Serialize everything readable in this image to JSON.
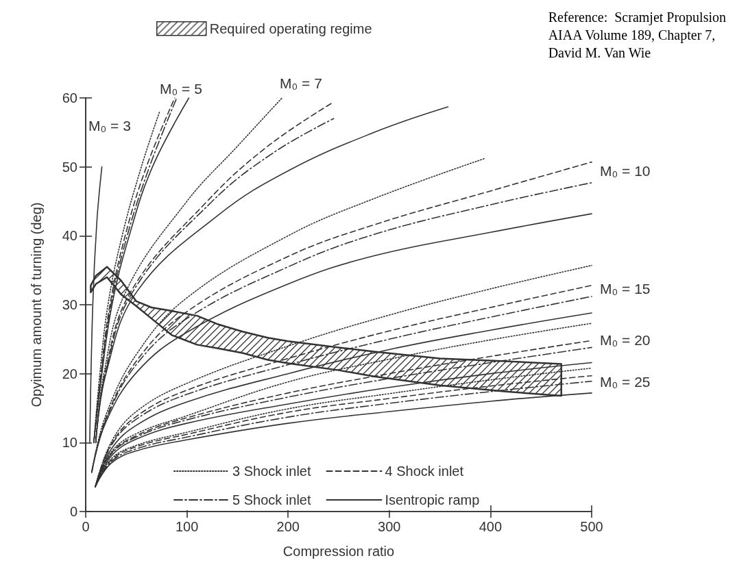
{
  "chart_data": {
    "type": "line",
    "xlabel": "Compression ratio",
    "ylabel": "Opyimum amount of turning (deg)",
    "xlim": [
      0,
      500
    ],
    "xticks": [
      0,
      100,
      200,
      300,
      400,
      500
    ],
    "ylim": [
      0,
      60
    ],
    "yticks": [
      0,
      10,
      20,
      30,
      40,
      50,
      60
    ],
    "grid": false,
    "legend": "top left",
    "marker": "none",
    "annotations": [
      "Reference:  Scramjet Propulsion\nAIAA Volume 189, Chapter 7,\nDavid M. Van Wie",
      "M₀ = 3",
      "M₀ = 5",
      "M₀ = 7",
      "M₀ = 10",
      "M₀ = 15",
      "M₀ = 20",
      "M₀ = 25"
    ],
    "series": [
      {
        "type": "area",
        "name": "Required operating regime",
        "color": "#333333",
        "x": [
          5,
          10,
          21,
          35,
          50,
          65,
          85,
          110,
          130,
          155,
          180,
          200,
          250,
          285,
          350,
          415,
          470
        ],
        "upper": [
          32.8,
          34.2,
          35.5,
          33.5,
          30.5,
          29.6,
          29.1,
          28.4,
          27.2,
          26.1,
          25.2,
          24.7,
          23.8,
          23.2,
          22.2,
          21.8,
          21.4
        ],
        "lower": [
          31.8,
          33.0,
          34.0,
          31.5,
          29.8,
          28.0,
          25.6,
          24.2,
          23.7,
          23.0,
          22.0,
          21.5,
          20.5,
          19.6,
          18.3,
          17.4,
          16.8
        ],
        "values": [
          null,
          null,
          null,
          null,
          null,
          null,
          null,
          null,
          null,
          null,
          null,
          null,
          null,
          null,
          null,
          null,
          null
        ]
      },
      {
        "color": "#333333",
        "line_style": "solid",
        "x": [
          4,
          7,
          11,
          16
        ],
        "values": [
          10,
          30,
          42,
          50
        ]
      },
      {
        "name": "3 Shock inlet",
        "color": "#333333",
        "line_style": "dotted",
        "x": [
          8,
          14,
          22,
          36,
          55,
          73
        ],
        "values": [
          10,
          20,
          30,
          40,
          50,
          58
        ]
      },
      {
        "name": "4 Shock inlet",
        "color": "#333333",
        "line_style": "dashed",
        "x": [
          8,
          15,
          24,
          39,
          60,
          88
        ],
        "values": [
          10,
          20,
          30,
          40,
          50,
          60
        ]
      },
      {
        "name": "5 Shock inlet",
        "color": "#333333",
        "line_style": "dashdot",
        "x": [
          8,
          15.5,
          25,
          41,
          63,
          90
        ],
        "values": [
          10,
          20,
          30,
          40,
          50,
          60
        ]
      },
      {
        "name": "Isentropic ramp",
        "color": "#333333",
        "line_style": "solid",
        "x": [
          8,
          16,
          26,
          43,
          66,
          102
        ],
        "values": [
          10,
          20,
          30,
          40,
          50,
          60
        ]
      },
      {
        "color": "#333333",
        "line_style": "dotted",
        "x": [
          10,
          18,
          40,
          100,
          150,
          194
        ],
        "values": [
          10,
          20,
          32,
          45,
          53,
          60
        ]
      },
      {
        "color": "#333333",
        "line_style": "dashed",
        "x": [
          10,
          19,
          45,
          120,
          180,
          245
        ],
        "values": [
          10,
          20,
          32,
          45,
          53,
          59.4
        ]
      },
      {
        "color": "#333333",
        "line_style": "dashdot",
        "x": [
          10,
          19.5,
          47,
          125,
          185,
          245
        ],
        "values": [
          10,
          20,
          32,
          45,
          52,
          57
        ]
      },
      {
        "color": "#333333",
        "line_style": "solid",
        "x": [
          10,
          20,
          51,
          131,
          201,
          285,
          358
        ],
        "values": [
          10,
          20,
          32,
          43,
          49.5,
          55,
          58.7
        ]
      },
      {
        "color": "#333333",
        "line_style": "dotted",
        "x": [
          6,
          20,
          51,
          100,
          200,
          285,
          394
        ],
        "values": [
          5.7,
          14,
          23,
          31,
          40,
          45.4,
          51.2
        ]
      },
      {
        "color": "#333333",
        "line_style": "dashed",
        "x": [
          6,
          20,
          51,
          100,
          200,
          285,
          400,
          500
        ],
        "values": [
          5.7,
          13.5,
          22,
          29,
          37,
          41.6,
          46.5,
          50.7
        ]
      },
      {
        "color": "#333333",
        "line_style": "dashdot",
        "x": [
          6,
          20,
          51,
          100,
          200,
          285,
          400,
          500
        ],
        "values": [
          5.7,
          13.3,
          21.5,
          28,
          35.5,
          40.2,
          44.5,
          47.7
        ]
      },
      {
        "color": "#333333",
        "line_style": "solid",
        "x": [
          6,
          20,
          51,
          100,
          200,
          285,
          400,
          500
        ],
        "values": [
          5.7,
          13,
          20.3,
          26,
          33,
          37.1,
          40.5,
          43.2
        ]
      },
      {
        "color": "#333333",
        "line_style": "dotted",
        "x": [
          9.5,
          25,
          50,
          100,
          200,
          300,
          400,
          500
        ],
        "values": [
          3.6,
          10,
          14.5,
          18.6,
          24,
          28.5,
          32.3,
          35.7
        ]
      },
      {
        "color": "#333333",
        "line_style": "dashed",
        "x": [
          9.5,
          25,
          50,
          100,
          200,
          300,
          400,
          500
        ],
        "values": [
          3.6,
          9.7,
          13.8,
          17.6,
          22.2,
          26.2,
          29.6,
          32.8
        ]
      },
      {
        "color": "#333333",
        "line_style": "dashdot",
        "x": [
          9.5,
          25,
          50,
          100,
          200,
          300,
          400,
          500
        ],
        "values": [
          3.6,
          9.5,
          13.4,
          17,
          21.3,
          25,
          28.2,
          31.2
        ]
      },
      {
        "color": "#333333",
        "line_style": "solid",
        "x": [
          9.5,
          25,
          50,
          100,
          200,
          300,
          400,
          500
        ],
        "values": [
          3.6,
          9,
          12.5,
          15.9,
          20,
          23.5,
          26.3,
          28.8
        ]
      },
      {
        "color": "#333333",
        "line_style": "dotted",
        "x": [
          9.5,
          25,
          50,
          100,
          200,
          300,
          400,
          500
        ],
        "values": [
          3.6,
          8.6,
          11.3,
          13.9,
          18.8,
          22.1,
          24.9,
          27.3
        ]
      },
      {
        "color": "#333333",
        "line_style": "dashed",
        "x": [
          9.5,
          25,
          50,
          100,
          200,
          300,
          400,
          500
        ],
        "values": [
          3.6,
          8.4,
          11,
          13.6,
          17.2,
          20,
          22.5,
          24.8
        ]
      },
      {
        "color": "#333333",
        "line_style": "dashdot",
        "x": [
          9.5,
          25,
          50,
          100,
          200,
          300,
          400,
          500
        ],
        "values": [
          3.6,
          8.3,
          10.8,
          13.3,
          16.6,
          19.3,
          21.6,
          23.8
        ]
      },
      {
        "color": "#333333",
        "line_style": "solid",
        "x": [
          9.5,
          25,
          50,
          100,
          200,
          300,
          400,
          500
        ],
        "values": [
          3.6,
          8,
          10.5,
          12.8,
          15.6,
          18,
          20,
          21.6
        ]
      },
      {
        "color": "#333333",
        "line_style": "dotted",
        "x": [
          9.5,
          25,
          50,
          100,
          200,
          300,
          400,
          500
        ],
        "values": [
          3.6,
          7.6,
          9.6,
          11.5,
          14.9,
          17.1,
          19.1,
          20.8
        ]
      },
      {
        "color": "#333333",
        "line_style": "dashed",
        "x": [
          9.5,
          25,
          50,
          100,
          200,
          300,
          400,
          500
        ],
        "values": [
          3.6,
          7.4,
          9.4,
          11.2,
          14.4,
          16.4,
          18.2,
          19.7
        ]
      },
      {
        "color": "#333333",
        "line_style": "dashdot",
        "x": [
          9.5,
          25,
          50,
          100,
          200,
          300,
          400,
          500
        ],
        "values": [
          3.6,
          7.2,
          9.1,
          10.8,
          13.7,
          15.7,
          17.4,
          18.9
        ]
      },
      {
        "color": "#333333",
        "line_style": "solid",
        "x": [
          9.5,
          25,
          50,
          100,
          200,
          300,
          400,
          500
        ],
        "values": [
          3.6,
          7,
          8.8,
          10.4,
          12.8,
          14.5,
          16,
          17.2
        ]
      }
    ]
  }
}
